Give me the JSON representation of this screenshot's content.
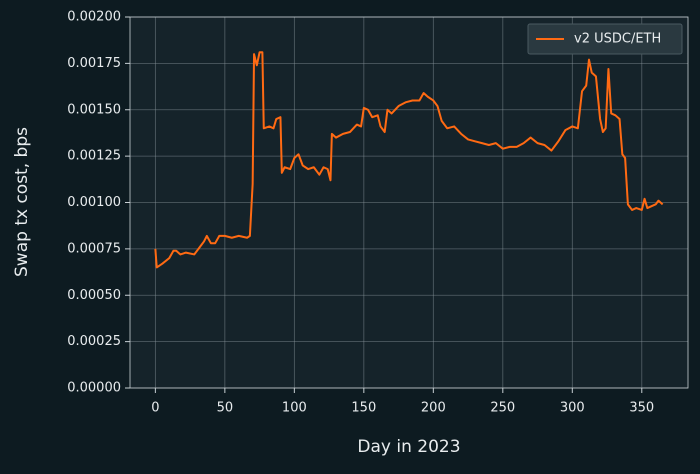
{
  "chart_data": {
    "type": "line",
    "xlabel": "Day in 2023",
    "ylabel": "Swap tx cost, bps",
    "legend": "upper right",
    "grid": true,
    "xlim": [
      -18.25,
      383.25
    ],
    "xticks": [
      0,
      50,
      100,
      150,
      200,
      250,
      300,
      350
    ],
    "ylim": [
      0,
      0.002
    ],
    "yticks": [
      {
        "value": 0,
        "label": "0.00000"
      },
      {
        "value": 0.00025,
        "label": "0.00025"
      },
      {
        "value": 0.0005,
        "label": "0.00050"
      },
      {
        "value": 0.00075,
        "label": "0.00075"
      },
      {
        "value": 0.001,
        "label": "0.00100"
      },
      {
        "value": 0.00125,
        "label": "0.00125"
      },
      {
        "value": 0.0015,
        "label": "0.00150"
      },
      {
        "value": 0.00175,
        "label": "0.00175"
      },
      {
        "value": 0.002,
        "label": "0.00200"
      }
    ],
    "x": [
      0,
      1,
      5,
      10,
      13,
      15,
      18,
      22,
      28,
      32,
      35,
      37,
      40,
      43,
      46,
      50,
      55,
      60,
      66,
      68,
      70,
      71,
      73,
      75,
      77,
      78,
      82,
      85,
      87,
      90,
      91,
      93,
      97,
      100,
      103,
      106,
      110,
      114,
      118,
      121,
      124,
      126,
      127,
      130,
      135,
      140,
      145,
      148,
      150,
      153,
      156,
      160,
      162,
      165,
      167,
      170,
      175,
      180,
      185,
      190,
      193,
      196,
      200,
      203,
      206,
      210,
      215,
      220,
      225,
      230,
      235,
      240,
      245,
      250,
      255,
      260,
      265,
      270,
      275,
      280,
      285,
      290,
      295,
      300,
      304,
      307,
      310,
      312,
      314,
      317,
      320,
      322,
      324,
      326,
      328,
      331,
      334,
      336,
      338,
      340,
      343,
      346,
      350,
      352,
      354,
      357,
      360,
      362,
      365
    ],
    "series": [
      {
        "name": "v2 USDC/ETH",
        "color": "#ff6a13",
        "values": [
          0.00075,
          0.00065,
          0.00067,
          0.0007,
          0.00074,
          0.00074,
          0.00072,
          0.00073,
          0.00072,
          0.00076,
          0.00079,
          0.00082,
          0.00078,
          0.00078,
          0.00082,
          0.00082,
          0.00081,
          0.00082,
          0.00081,
          0.00082,
          0.0011,
          0.0018,
          0.00174,
          0.00181,
          0.00181,
          0.0014,
          0.00141,
          0.0014,
          0.00145,
          0.00146,
          0.00116,
          0.00119,
          0.00118,
          0.00124,
          0.00126,
          0.0012,
          0.00118,
          0.00119,
          0.00115,
          0.00119,
          0.00118,
          0.00112,
          0.00137,
          0.00135,
          0.00137,
          0.00138,
          0.00142,
          0.00141,
          0.00151,
          0.0015,
          0.00146,
          0.00147,
          0.00141,
          0.00138,
          0.0015,
          0.00148,
          0.00152,
          0.00154,
          0.00155,
          0.00155,
          0.00159,
          0.00157,
          0.00155,
          0.00152,
          0.00144,
          0.0014,
          0.00141,
          0.00137,
          0.00134,
          0.00133,
          0.00132,
          0.00131,
          0.00132,
          0.00129,
          0.0013,
          0.0013,
          0.00132,
          0.00135,
          0.00132,
          0.00131,
          0.00128,
          0.00133,
          0.00139,
          0.00141,
          0.0014,
          0.0016,
          0.00163,
          0.00177,
          0.0017,
          0.00168,
          0.00145,
          0.00138,
          0.0014,
          0.00172,
          0.00148,
          0.00147,
          0.00145,
          0.00126,
          0.00124,
          0.00099,
          0.00096,
          0.00097,
          0.00096,
          0.00102,
          0.00097,
          0.00098,
          0.00099,
          0.00101,
          0.00099
        ]
      }
    ]
  }
}
